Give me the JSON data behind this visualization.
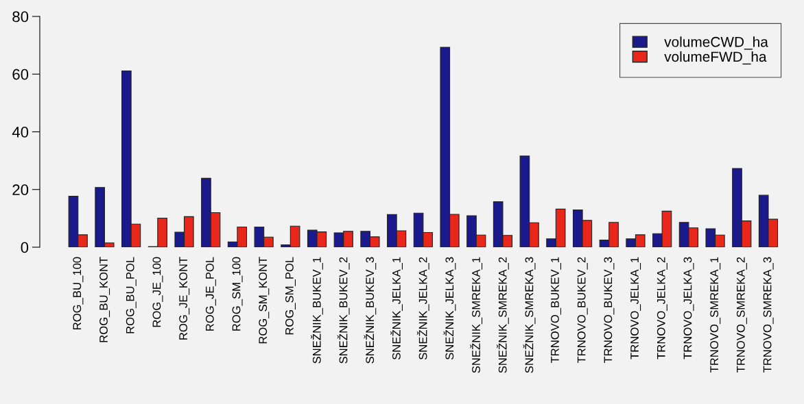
{
  "chart_data": {
    "type": "bar",
    "categories": [
      "ROG_BU_100",
      "ROG_BU_KONT",
      "ROG_BU_POL",
      "ROG_JE_100",
      "ROG_JE_KONT",
      "ROG_JE_POL",
      "ROG_SM_100",
      "ROG_SM_KONT",
      "ROG_SM_POL",
      "SNEŽNIK_BUKEV_1",
      "SNEŽNIK_BUKEV_2",
      "SNEŽNIK_BUKEV_3",
      "SNEŽNIK_JELKA_1",
      "SNEŽNIK_JELKA_2",
      "SNEŽNIK_JELKA_3",
      "SNEŽNIK_SMREKA_1",
      "SNEŽNIK_SMREKA_2",
      "SNEŽNIK_SMREKA_3",
      "TRNOVO_BUKEV_1",
      "TRNOVO_BUKEV_2",
      "TRNOVO_BUKEV_3",
      "TRNOVO_JELKA_1",
      "TRNOVO_JELKA_2",
      "TRNOVO_JELKA_3",
      "TRNOVO_SMREKA_1",
      "TRNOVO_SMREKA_2",
      "TRNOVO_SMREKA_3"
    ],
    "series": [
      {
        "name": "volumeCWD_ha",
        "color": "#1a1a8c",
        "values": [
          17.7,
          20.7,
          61.1,
          0.2,
          5.2,
          23.9,
          1.8,
          7.0,
          0.8,
          5.9,
          5.0,
          5.5,
          11.3,
          11.8,
          69.3,
          10.9,
          15.8,
          31.6,
          2.9,
          12.9,
          2.5,
          2.9,
          4.7,
          8.6,
          6.4,
          27.3,
          18.0
        ]
      },
      {
        "name": "volumeFWD_ha",
        "color": "#e8261a",
        "values": [
          4.3,
          1.5,
          8.0,
          10.1,
          10.6,
          12.0,
          7.0,
          3.5,
          7.3,
          5.3,
          5.5,
          3.6,
          5.7,
          5.1,
          11.4,
          4.2,
          4.1,
          8.5,
          13.2,
          9.3,
          8.6,
          4.3,
          12.5,
          6.7,
          4.2,
          9.1,
          9.7
        ]
      }
    ],
    "ylim": [
      0,
      80
    ],
    "yticks": [
      0,
      20,
      40,
      60,
      80
    ],
    "grid": false,
    "legend": "top right"
  }
}
